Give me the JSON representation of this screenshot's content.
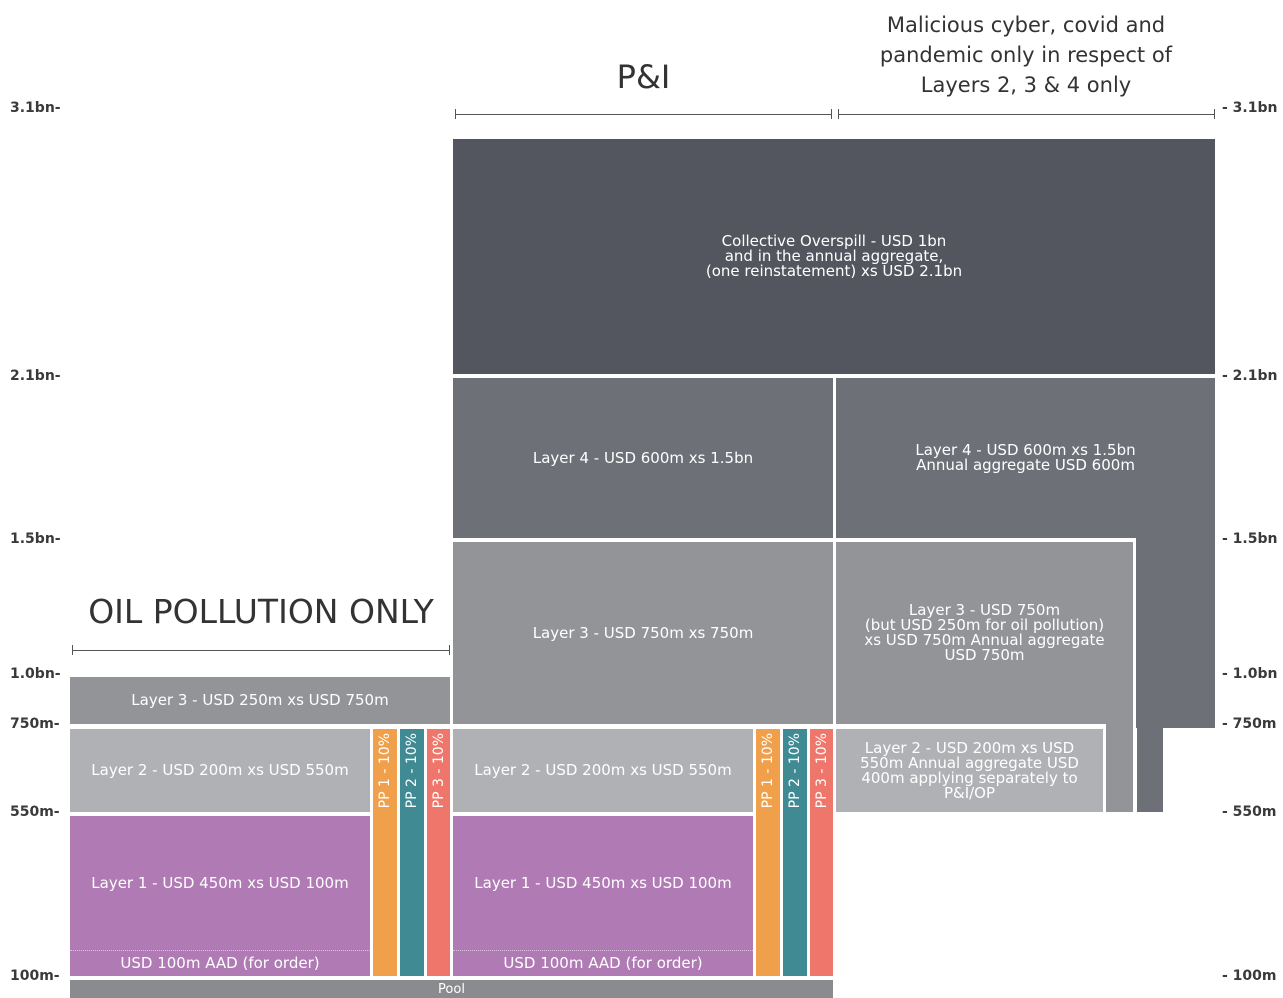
{
  "axis_left": [
    "3.1bn-",
    "2.1bn-",
    "1.5bn-",
    "1.0bn-",
    "750m-",
    "550m-",
    "100m-"
  ],
  "axis_right": [
    "- 3.1bn",
    "- 2.1bn",
    "- 1.5bn",
    "- 1.0bn",
    "- 750m",
    "- 550m",
    "- 100m"
  ],
  "headers": {
    "pi": "P&I",
    "malicious": [
      "Malicious cyber, covid and",
      "pandemic only in respect of",
      "Layers 2, 3 & 4 only"
    ],
    "oil": "OIL POLLUTION ONLY"
  },
  "blocks": {
    "collective": [
      "Collective Overspill - USD 1bn",
      "and in the annual aggregate,",
      "(one reinstatement) xs USD 2.1bn"
    ],
    "layer4_pi": [
      "Layer 4 - USD 600m xs 1.5bn"
    ],
    "layer4_mal": [
      "Layer 4 - USD 600m xs 1.5bn",
      "Annual aggregate USD 600m"
    ],
    "layer3_pi": [
      "Layer 3 - USD 750m xs 750m"
    ],
    "layer3_mal": [
      "Layer 3 - USD 750m",
      "(but USD 250m for oil pollution)",
      "xs USD 750m Annual aggregate",
      "USD 750m"
    ],
    "layer3_oil": [
      "Layer 3 - USD 250m xs USD 750m"
    ],
    "layer2_oil": [
      "Layer 2 - USD 200m xs USD 550m"
    ],
    "layer2_pi": [
      "Layer 2 - USD 200m xs USD 550m"
    ],
    "layer2_mal": [
      "Layer 2 - USD 200m xs USD",
      "550m Annual aggregate USD",
      "400m applying separately to",
      "P&I/OP"
    ],
    "layer1_oil": [
      "Layer 1 - USD 450m xs USD 100m"
    ],
    "layer1_pi": [
      "Layer 1 - USD 450m xs USD 100m"
    ],
    "aad_oil": "USD 100m AAD (for order)",
    "aad_pi": "USD 100m AAD (for order)",
    "pp_oil": [
      "PP 1 - 10%",
      "PP 2 - 10%",
      "PP 3 - 10%"
    ],
    "pp_pi": [
      "PP 1 - 10%",
      "PP 2 - 10%",
      "PP 3 - 10%"
    ],
    "pool": "Pool"
  }
}
